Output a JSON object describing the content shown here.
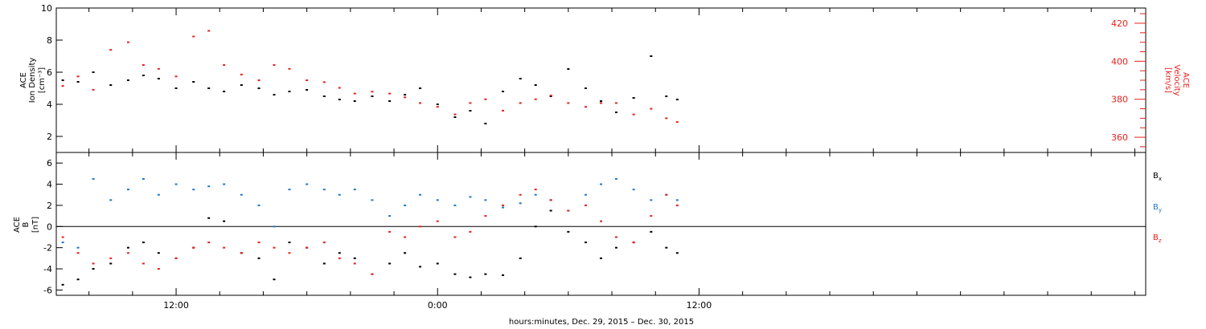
{
  "colors": {
    "black": "#000000",
    "red": "#e8201c",
    "blue": "#1f78c8"
  },
  "x_axis": {
    "title": "hours:minutes, Dec. 29, 2015 – Dec. 30, 2015",
    "tick_labels": [
      "12:00",
      "0:00",
      "12:00"
    ],
    "range_hours": [
      6.5,
      56.5
    ],
    "major_tick_hours": [
      12,
      24,
      36
    ],
    "minor_tick_step_hours": 2
  },
  "chart_data": [
    {
      "type": "scatter",
      "panel": "top",
      "left_axis": {
        "label_line1": "ACE",
        "label_line2": "Ion Density",
        "label_line3": "[cm⁻³]",
        "ylim": [
          1,
          10
        ],
        "tick_labels": [
          "2",
          "4",
          "6",
          "8",
          "10"
        ],
        "ticks": [
          2,
          4,
          6,
          8,
          10
        ]
      },
      "right_axis": {
        "label_line1": "ACE",
        "label_line2": "Velocity",
        "label_line3": "[km/s]",
        "ylim": [
          352,
          428
        ],
        "tick_labels": [
          "360",
          "380",
          "400",
          "420"
        ],
        "ticks": [
          360,
          380,
          400,
          420
        ]
      },
      "series": [
        {
          "name": "Ion Density",
          "axis": "left",
          "color": "#000000",
          "x_hours": [
            6.8,
            7.5,
            8.2,
            9.0,
            9.8,
            10.5,
            11.2,
            12.0,
            12.8,
            13.5,
            14.2,
            15.0,
            15.8,
            16.5,
            17.2,
            18.0,
            18.8,
            19.5,
            20.2,
            21.0,
            21.8,
            22.5,
            23.2,
            24.0,
            24.8,
            25.5,
            26.2,
            27.0,
            27.8,
            28.5,
            29.2,
            30.0,
            30.8,
            31.5,
            32.2,
            33.0,
            33.8,
            34.5,
            35.0
          ],
          "values": [
            5.5,
            5.4,
            6.0,
            5.2,
            5.5,
            5.8,
            5.6,
            5.0,
            5.4,
            5.0,
            4.8,
            5.2,
            5.0,
            4.6,
            4.8,
            4.9,
            4.5,
            4.3,
            4.2,
            4.5,
            4.2,
            4.6,
            5.0,
            4.0,
            3.2,
            3.6,
            2.8,
            4.8,
            5.6,
            5.2,
            4.5,
            6.2,
            5.0,
            4.2,
            3.5,
            4.4,
            7.0,
            4.5,
            4.3
          ]
        },
        {
          "name": "Velocity",
          "axis": "right",
          "color": "#e8201c",
          "x_hours": [
            6.8,
            7.5,
            8.2,
            9.0,
            9.8,
            10.5,
            11.2,
            12.0,
            12.8,
            13.5,
            14.2,
            15.0,
            15.8,
            16.5,
            17.2,
            18.0,
            18.8,
            19.5,
            20.2,
            21.0,
            21.8,
            22.5,
            23.2,
            24.0,
            24.8,
            25.5,
            26.2,
            27.0,
            27.8,
            28.5,
            29.2,
            30.0,
            30.8,
            31.5,
            32.2,
            33.0,
            33.8,
            34.5,
            35.0
          ],
          "values": [
            387,
            392,
            385,
            406,
            410,
            398,
            396,
            392,
            413,
            416,
            398,
            393,
            390,
            398,
            396,
            390,
            389,
            386,
            383,
            384,
            383,
            381,
            378,
            376,
            372,
            378,
            380,
            374,
            378,
            380,
            382,
            378,
            376,
            378,
            378,
            372,
            375,
            370,
            368
          ]
        }
      ]
    },
    {
      "type": "scatter",
      "panel": "bottom",
      "left_axis": {
        "label_line1": "ACE",
        "label_line2": "B",
        "label_line3": "[nT]",
        "ylim": [
          -6.5,
          7
        ],
        "tick_labels": [
          "-6",
          "-4",
          "-2",
          "0",
          "2",
          "4",
          "6"
        ],
        "ticks": [
          -6,
          -4,
          -2,
          0,
          2,
          4,
          6
        ]
      },
      "legend": [
        {
          "main": "B",
          "sub": "x",
          "color": "#000000"
        },
        {
          "main": "B",
          "sub": "y",
          "color": "#1f78c8"
        },
        {
          "main": "B",
          "sub": "z",
          "color": "#e8201c"
        }
      ],
      "series": [
        {
          "name": "Bx",
          "color": "#000000",
          "x_hours": [
            6.8,
            7.5,
            8.2,
            9.0,
            9.8,
            10.5,
            11.2,
            12.0,
            12.8,
            13.5,
            14.2,
            15.0,
            15.8,
            16.5,
            17.2,
            18.0,
            18.8,
            19.5,
            20.2,
            21.0,
            21.8,
            22.5,
            23.2,
            24.0,
            24.8,
            25.5,
            26.2,
            27.0,
            27.8,
            28.5,
            29.2,
            30.0,
            30.8,
            31.5,
            32.2,
            33.0,
            33.8,
            34.5,
            35.0
          ],
          "values": [
            -5.5,
            -5.0,
            -4.0,
            -3.5,
            -2.0,
            -1.5,
            -2.5,
            -3.0,
            -2.0,
            0.8,
            0.5,
            -2.5,
            -3.0,
            -5.0,
            -1.5,
            -2.0,
            -3.5,
            -2.5,
            -3.0,
            -4.5,
            -3.5,
            -2.5,
            -3.8,
            -3.5,
            -4.5,
            -4.8,
            -4.5,
            -4.6,
            -3.0,
            0.0,
            1.5,
            -0.5,
            -1.5,
            -3.0,
            -2.0,
            -1.5,
            -0.5,
            -2.0,
            -2.5
          ]
        },
        {
          "name": "By",
          "color": "#1f78c8",
          "x_hours": [
            6.8,
            7.5,
            8.2,
            9.0,
            9.8,
            10.5,
            11.2,
            12.0,
            12.8,
            13.5,
            14.2,
            15.0,
            15.8,
            16.5,
            17.2,
            18.0,
            18.8,
            19.5,
            20.2,
            21.0,
            21.8,
            22.5,
            23.2,
            24.0,
            24.8,
            25.5,
            26.2,
            27.0,
            27.8,
            28.5,
            29.2,
            30.0,
            30.8,
            31.5,
            32.2,
            33.0,
            33.8,
            34.5,
            35.0
          ],
          "values": [
            -1.5,
            -2.0,
            4.5,
            2.5,
            3.5,
            4.5,
            3.0,
            4.0,
            3.5,
            3.8,
            4.0,
            3.0,
            2.0,
            0.0,
            3.5,
            4.0,
            3.5,
            3.0,
            3.5,
            2.5,
            1.0,
            2.0,
            3.0,
            2.5,
            2.0,
            2.8,
            2.5,
            1.8,
            2.2,
            3.0,
            2.5,
            1.5,
            3.0,
            4.0,
            4.5,
            3.5,
            2.5,
            3.0,
            2.5
          ]
        },
        {
          "name": "Bz",
          "color": "#e8201c",
          "x_hours": [
            6.8,
            7.5,
            8.2,
            9.0,
            9.8,
            10.5,
            11.2,
            12.0,
            12.8,
            13.5,
            14.2,
            15.0,
            15.8,
            16.5,
            17.2,
            18.0,
            18.8,
            19.5,
            20.2,
            21.0,
            21.8,
            22.5,
            23.2,
            24.0,
            24.8,
            25.5,
            26.2,
            27.0,
            27.8,
            28.5,
            29.2,
            30.0,
            30.8,
            31.5,
            32.2,
            33.0,
            33.8,
            34.5,
            35.0
          ],
          "values": [
            -1.0,
            -2.5,
            -3.5,
            -3.0,
            -2.5,
            -3.5,
            -4.0,
            -3.0,
            -2.0,
            -1.5,
            -2.0,
            -2.5,
            -1.5,
            -2.0,
            -2.5,
            -2.0,
            -1.5,
            -3.0,
            -3.5,
            -4.5,
            -0.5,
            -1.0,
            0.0,
            0.5,
            -1.0,
            -0.5,
            1.0,
            2.0,
            3.0,
            3.5,
            2.5,
            1.5,
            2.0,
            0.5,
            -1.0,
            -1.5,
            1.0,
            3.0,
            2.0
          ]
        }
      ]
    }
  ]
}
